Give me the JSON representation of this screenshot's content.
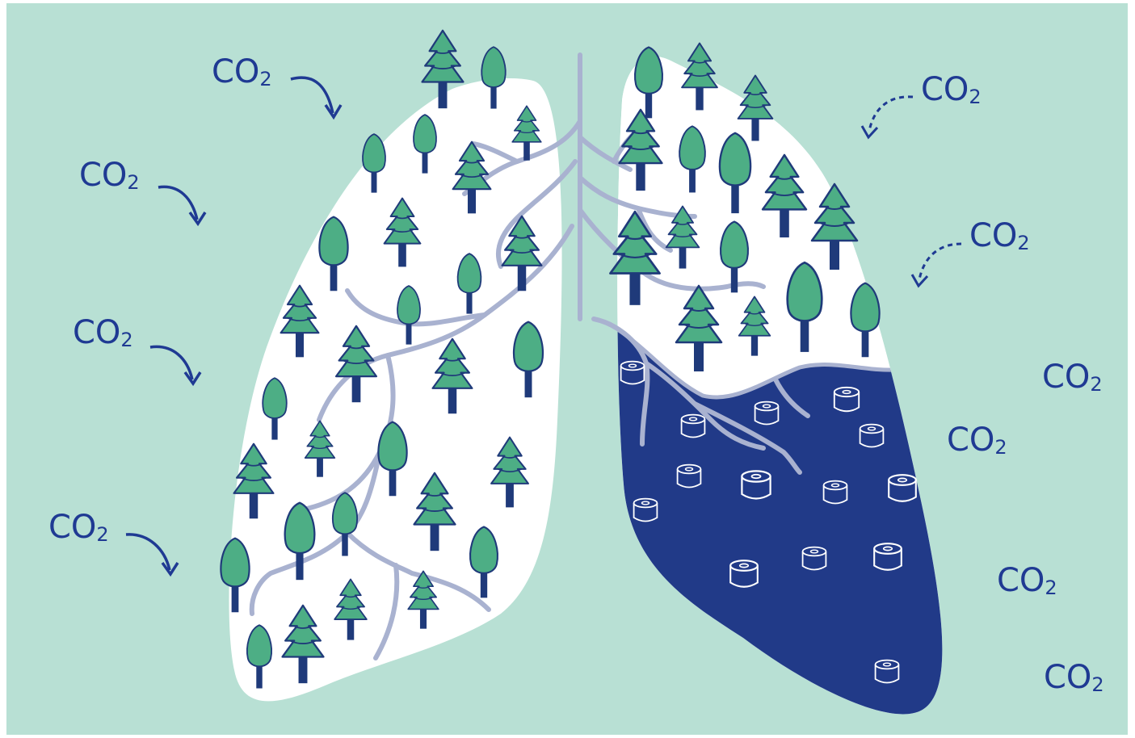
{
  "labels": {
    "co2_main": "CO",
    "co2_sub": "2"
  },
  "co2_marks": [
    {
      "kind": "solid-arrow",
      "side": "left"
    },
    {
      "kind": "solid-arrow",
      "side": "left"
    },
    {
      "kind": "solid-arrow",
      "side": "left"
    },
    {
      "kind": "solid-arrow",
      "side": "left"
    },
    {
      "kind": "dashed-arrow",
      "side": "right"
    },
    {
      "kind": "dashed-arrow",
      "side": "right"
    },
    {
      "kind": "no-arrow",
      "side": "right"
    },
    {
      "kind": "no-arrow",
      "side": "right"
    },
    {
      "kind": "no-arrow",
      "side": "right"
    },
    {
      "kind": "no-arrow",
      "side": "right"
    }
  ],
  "colors": {
    "background": "#b8e0d4",
    "lung_fill": "#ffffff",
    "deforested_fill": "#213a88",
    "tree_green": "#4dae85",
    "outline_navy": "#1f3a7a",
    "bronchi": "#a9b2d0",
    "stump_outline": "#ffffff"
  },
  "icons": {
    "pine": "pine-tree-icon",
    "round": "round-tree-icon",
    "stump": "tree-stump-icon"
  }
}
